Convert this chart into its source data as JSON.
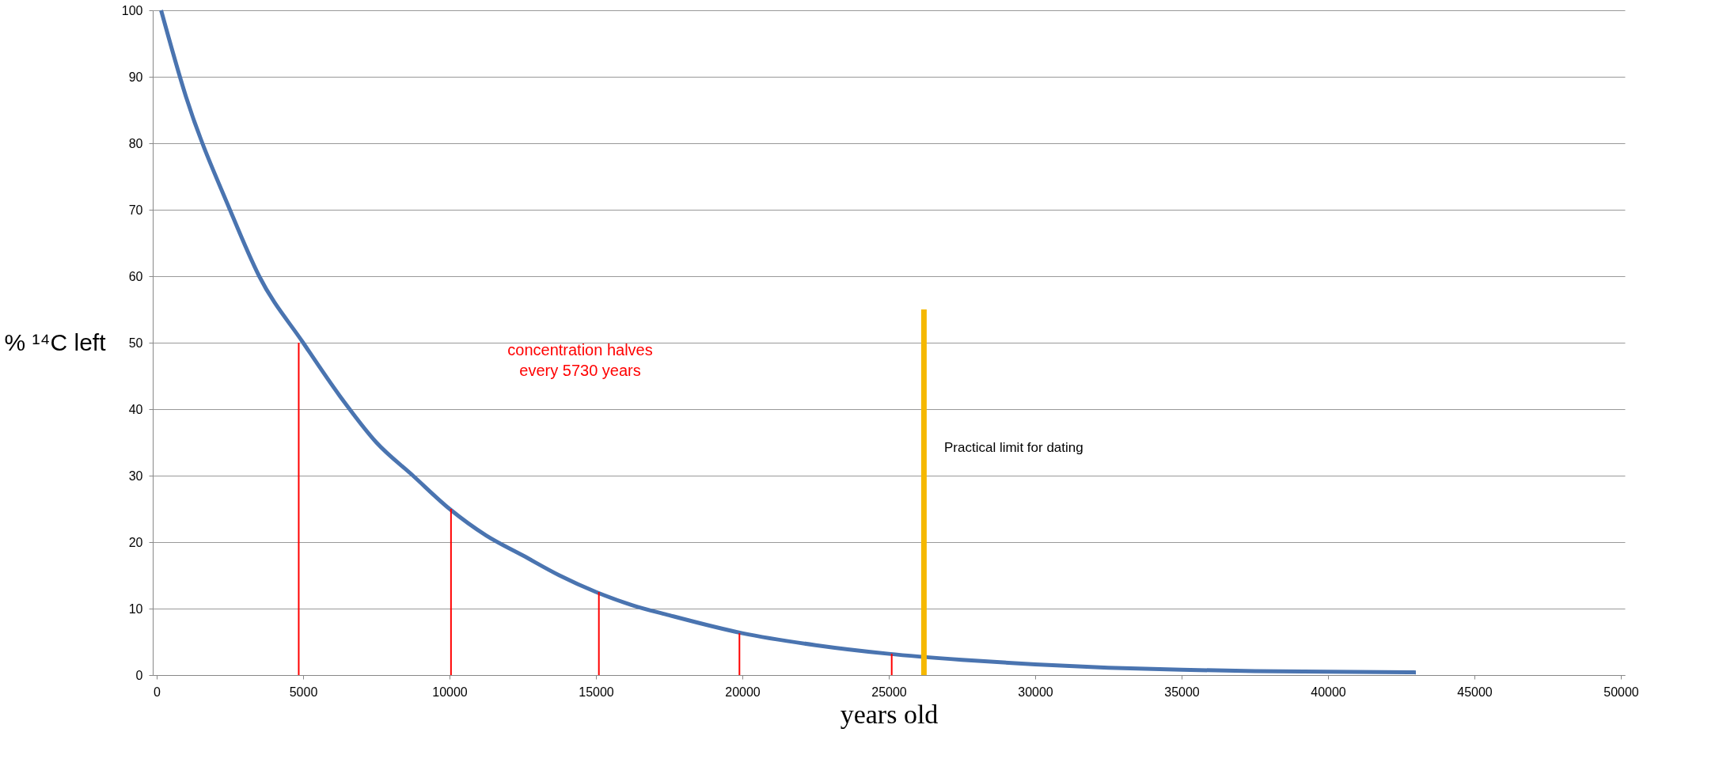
{
  "chart_data": {
    "type": "line",
    "xlabel": "years old",
    "ylabel": "% ¹⁴C left",
    "xlim": [
      0,
      50000
    ],
    "xticks": [
      0,
      5000,
      10000,
      15000,
      20000,
      25000,
      30000,
      35000,
      40000,
      45000,
      50000
    ],
    "ylim": [
      0,
      100
    ],
    "yticks": [
      0,
      10,
      20,
      30,
      40,
      50,
      60,
      70,
      80,
      90,
      100
    ],
    "grid": "y",
    "marker": "none",
    "line_style": "solid",
    "series": [
      {
        "color": "#4a74b0",
        "x": [
          150,
          1000,
          2500,
          3500,
          5000,
          6250,
          7500,
          8750,
          10000,
          11250,
          12500,
          13750,
          15000,
          16250,
          17500,
          20000,
          22500,
          25000,
          27500,
          30000,
          32500,
          35000,
          37500,
          40000,
          43000
        ],
        "values": [
          100,
          87,
          70,
          60,
          50,
          42,
          35,
          30,
          25,
          21,
          18,
          15,
          12.5,
          10.5,
          9,
          6.3,
          4.5,
          3.2,
          2.3,
          1.6,
          1.1,
          0.8,
          0.6,
          0.5,
          0.4
        ]
      },
      {
        "type": "bar",
        "color": "#ff0000",
        "x": [
          4850,
          10050,
          15100,
          19900,
          25100
        ],
        "values": [
          50,
          25,
          12.5,
          6.3,
          3.2
        ]
      },
      {
        "type": "bar",
        "color": "#f5b800",
        "x": [
          26200
        ],
        "values": [
          55
        ]
      }
    ],
    "annotations": [
      "concentration halves\nevery 5730 years",
      "Practical limit for dating"
    ]
  }
}
